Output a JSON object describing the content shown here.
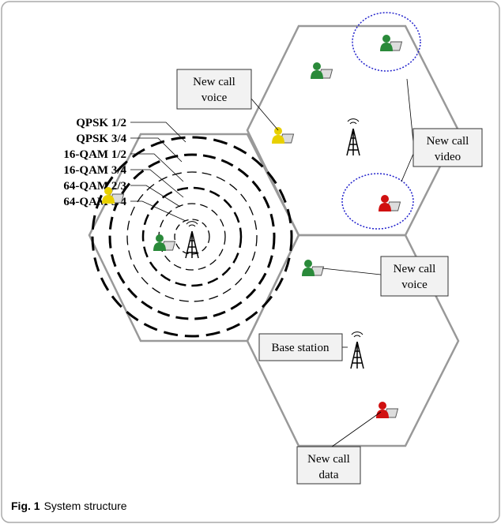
{
  "modulations": [
    "QPSK 1/2",
    "QPSK 3/4",
    "16-QAM 1/2",
    "16-QAM 3/4",
    "64-QAM 2/3",
    "64-QAM 3/4"
  ],
  "callouts": [
    {
      "lines": [
        "New call",
        "voice"
      ]
    },
    {
      "lines": [
        "New call",
        "video"
      ]
    },
    {
      "lines": [
        "New call",
        "voice"
      ]
    },
    {
      "lines": [
        "New call",
        "data"
      ]
    }
  ],
  "base_station": "Base station",
  "caption": {
    "label": "Fig. 1",
    "text": "System structure"
  }
}
